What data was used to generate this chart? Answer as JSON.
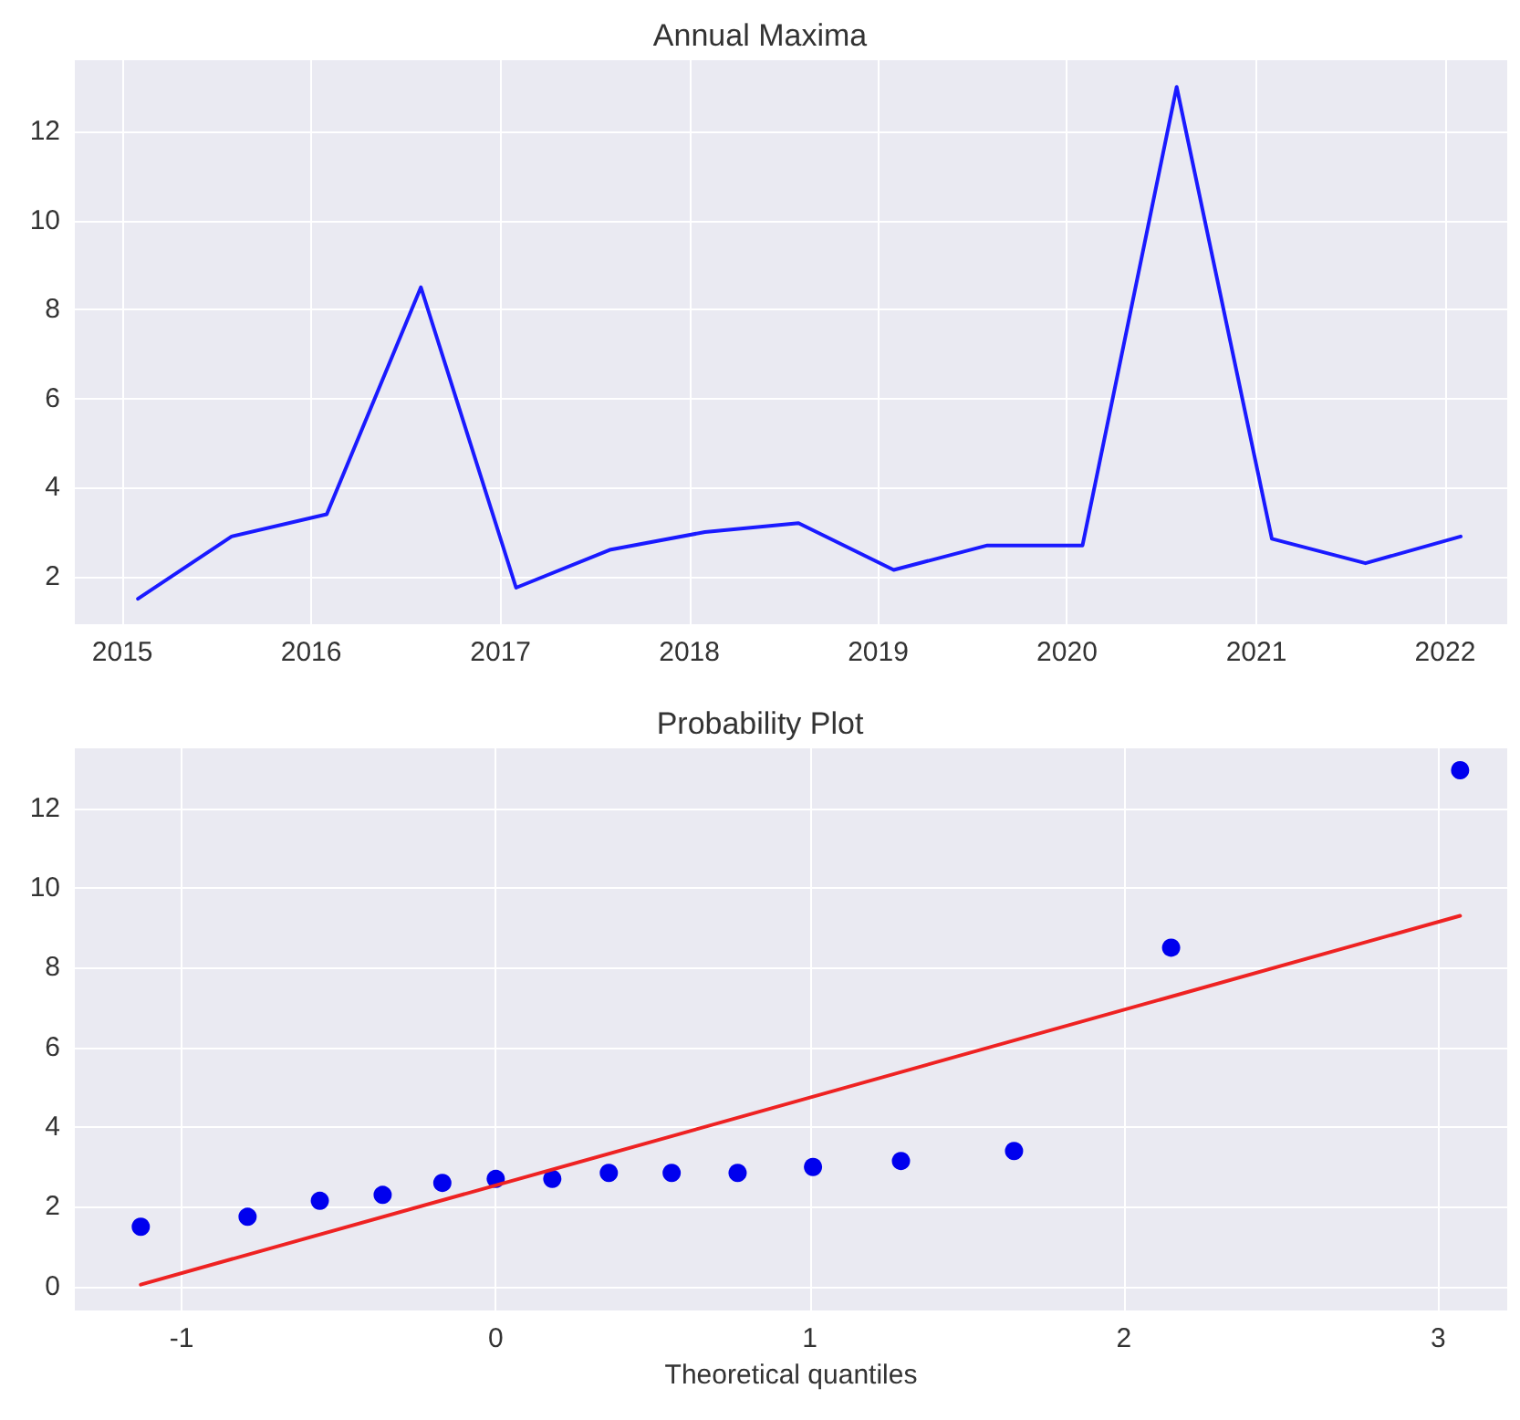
{
  "chart_data": [
    {
      "type": "line",
      "title": "Annual Maxima",
      "x": [
        "2015-01-31",
        "2015-07-31",
        "2016-01-31",
        "2016-07-31",
        "2017-01-31",
        "2017-07-31",
        "2018-01-31",
        "2018-07-31",
        "2019-01-31",
        "2019-07-31",
        "2020-01-31",
        "2020-07-31",
        "2021-01-31",
        "2021-07-31",
        "2022-01-31"
      ],
      "series": [
        {
          "color": "#1a1aff",
          "values": [
            1.5,
            2.9,
            3.4,
            8.5,
            1.75,
            2.6,
            3.0,
            3.2,
            2.15,
            2.7,
            2.7,
            13.0,
            2.85,
            2.3,
            2.9
          ]
        }
      ],
      "xlim": [
        "2014-10-01",
        "2022-05-01"
      ],
      "xticks": [
        {
          "value": "2015-01-01",
          "label": "2015"
        },
        {
          "value": "2016-01-01",
          "label": "2016"
        },
        {
          "value": "2017-01-01",
          "label": "2017"
        },
        {
          "value": "2018-01-01",
          "label": "2018"
        },
        {
          "value": "2019-01-01",
          "label": "2019"
        },
        {
          "value": "2020-01-01",
          "label": "2020"
        },
        {
          "value": "2021-01-01",
          "label": "2021"
        },
        {
          "value": "2022-01-01",
          "label": "2022"
        }
      ],
      "ylim": [
        0.93,
        13.6
      ],
      "yticks": [
        2,
        4,
        6,
        8,
        10,
        12
      ],
      "grid": true,
      "marker": "none"
    },
    {
      "type": "scatter",
      "title": "Probability Plot",
      "xlabel": "Theoretical quantiles",
      "series": [
        {
          "marker": "circle",
          "color": "#0000ee",
          "x": [
            -1.13,
            -0.79,
            -0.56,
            -0.36,
            -0.17,
            0,
            0.18,
            0.36,
            0.56,
            0.77,
            1.01,
            1.29,
            1.65,
            2.15,
            3.07
          ],
          "values": [
            1.5,
            1.75,
            2.15,
            2.3,
            2.6,
            2.7,
            2.7,
            2.85,
            2.85,
            2.85,
            3.0,
            3.15,
            3.4,
            8.5,
            12.95
          ]
        },
        {
          "type": "line",
          "color": "#ee2222",
          "x": [
            -1.13,
            3.07
          ],
          "values": [
            0.05,
            9.3
          ]
        }
      ],
      "xlim": [
        -1.34,
        3.22
      ],
      "xticks": [
        -1,
        0,
        1,
        2,
        3
      ],
      "ylim": [
        -0.6,
        13.5
      ],
      "yticks": [
        0,
        2,
        4,
        6,
        8,
        10,
        12
      ],
      "grid": true
    }
  ]
}
